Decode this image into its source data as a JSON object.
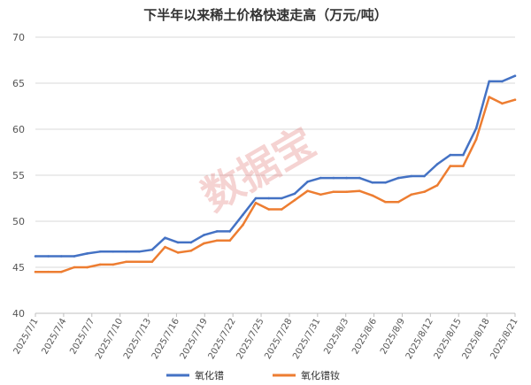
{
  "chart_data": {
    "type": "line",
    "title": "下半年以来稀土价格快速走高（万元/吨）",
    "watermark": "数据宝",
    "ylim": [
      40,
      70
    ],
    "yticks": [
      40,
      45,
      50,
      55,
      60,
      65,
      70
    ],
    "grid": true,
    "legend_position": "bottom",
    "x_dates": [
      "2025/7/1",
      "2025/7/2",
      "2025/7/3",
      "2025/7/4",
      "2025/7/7",
      "2025/7/8",
      "2025/7/9",
      "2025/7/10",
      "2025/7/11",
      "2025/7/14",
      "2025/7/15",
      "2025/7/16",
      "2025/7/17",
      "2025/7/18",
      "2025/7/21",
      "2025/7/22",
      "2025/7/23",
      "2025/7/24",
      "2025/7/25",
      "2025/7/28",
      "2025/7/29",
      "2025/7/30",
      "2025/7/31",
      "2025/8/1",
      "2025/8/4",
      "2025/8/5",
      "2025/8/6",
      "2025/8/7",
      "2025/8/8",
      "2025/8/11",
      "2025/8/12",
      "2025/8/13",
      "2025/8/14",
      "2025/8/15",
      "2025/8/18",
      "2025/8/19",
      "2025/8/20",
      "2025/8/21"
    ],
    "x_tick_labels": [
      "2025/7/1",
      "2025/7/4",
      "2025/7/7",
      "2025/7/10",
      "2025/7/13",
      "2025/7/16",
      "2025/7/19",
      "2025/7/22",
      "2025/7/25",
      "2025/7/28",
      "2025/7/31",
      "2025/8/3",
      "2025/8/6",
      "2025/8/9",
      "2025/8/12",
      "2025/8/15",
      "2025/8/18",
      "2025/8/21"
    ],
    "series": [
      {
        "name": "氧化镨",
        "color": "#4472C4",
        "values": [
          46.2,
          46.2,
          46.2,
          46.2,
          46.5,
          46.7,
          46.7,
          46.7,
          46.7,
          46.9,
          48.2,
          47.7,
          47.7,
          48.5,
          48.9,
          48.9,
          50.7,
          52.5,
          52.5,
          52.5,
          53.0,
          54.3,
          54.7,
          54.7,
          54.7,
          54.7,
          54.2,
          54.2,
          54.7,
          54.9,
          54.9,
          56.2,
          57.2,
          57.2,
          60.1,
          65.2,
          65.2,
          65.8
        ]
      },
      {
        "name": "氧化镨钕",
        "color": "#ED7D31",
        "values": [
          44.5,
          44.5,
          44.5,
          45.0,
          45.0,
          45.3,
          45.3,
          45.6,
          45.6,
          45.6,
          47.2,
          46.6,
          46.8,
          47.6,
          47.9,
          47.9,
          49.6,
          52.0,
          51.3,
          51.3,
          52.3,
          53.3,
          52.9,
          53.2,
          53.2,
          53.3,
          52.8,
          52.1,
          52.1,
          52.9,
          53.2,
          53.9,
          56.0,
          56.0,
          58.9,
          63.5,
          62.8,
          63.2
        ]
      }
    ]
  }
}
